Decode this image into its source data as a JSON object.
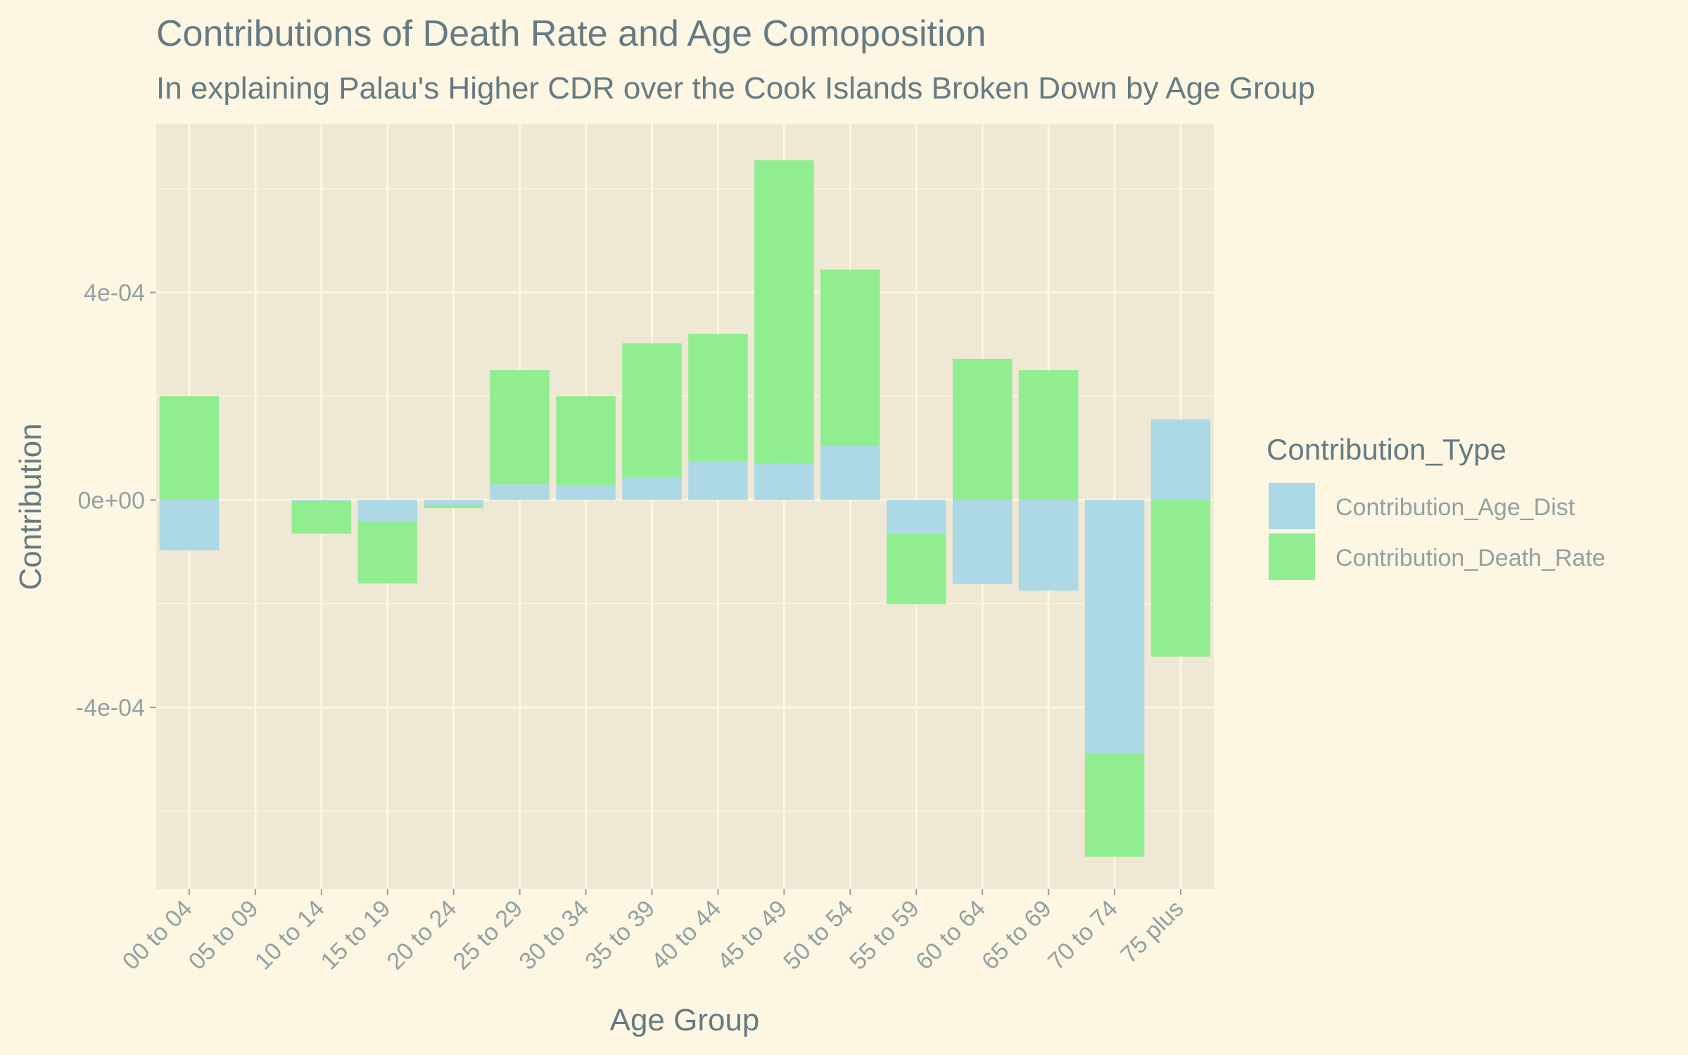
{
  "chart_data": {
    "type": "bar",
    "stacked": true,
    "title": "Contributions of Death Rate and Age Comoposition",
    "subtitle": "In explaining Palau's Higher CDR over the Cook Islands Broken Down by Age Group",
    "xlabel": "Age Group",
    "ylabel": "Contribution",
    "ylim": [
      -0.00075,
      0.000725
    ],
    "y_ticks": [
      {
        "value": -0.0004,
        "label": "-4e-04"
      },
      {
        "value": 0,
        "label": "0e+00"
      },
      {
        "value": 0.0004,
        "label": "4e-04"
      }
    ],
    "y_minor_ticks": [
      -0.0006,
      -0.0002,
      0.0002,
      0.0006
    ],
    "grid": true,
    "legend": {
      "title": "Contribution_Type",
      "position": "right"
    },
    "categories": [
      "00 to 04",
      "05 to 09",
      "10 to 14",
      "15 to 19",
      "20 to 24",
      "25 to 29",
      "30 to 34",
      "35 to 39",
      "40 to 44",
      "45 to 49",
      "50 to 54",
      "55 to 59",
      "60 to 64",
      "65 to 69",
      "70 to 74",
      "75 plus"
    ],
    "series": [
      {
        "name": "Contribution_Age_Dist",
        "color": "#add8e6",
        "values": [
          -9.7e-05,
          0.0,
          -3e-06,
          -4.3e-05,
          -1.1e-05,
          3e-05,
          2.8e-05,
          4.4e-05,
          7.5e-05,
          7e-05,
          0.000104,
          -6.6e-05,
          -0.000162,
          -0.000175,
          -0.000488,
          0.000155
        ]
      },
      {
        "name": "Contribution_Death_Rate",
        "color": "#90ee90",
        "values": [
          0.0002,
          0.0,
          -6.2e-05,
          -0.000118,
          -5e-06,
          0.00022,
          0.000172,
          0.000258,
          0.000245,
          0.000585,
          0.00034,
          -0.000135,
          0.000272,
          0.00025,
          -0.0002,
          -0.000302
        ]
      }
    ]
  }
}
